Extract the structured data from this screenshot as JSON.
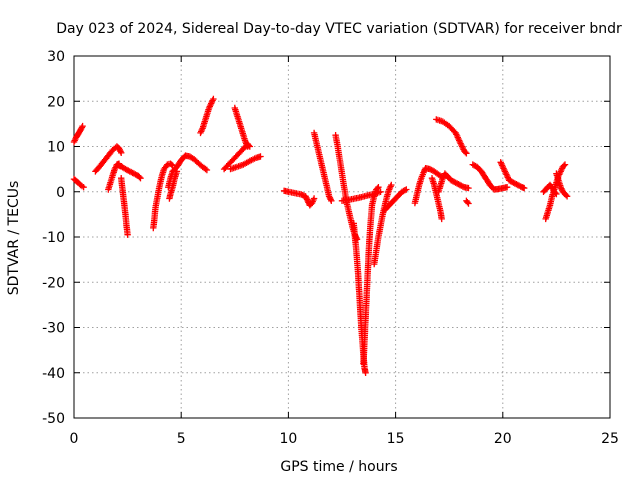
{
  "chart_data": {
    "type": "scatter",
    "title": "Day 023 of 2024, Sidereal Day-to-day VTEC variation (SDTVAR) for receiver bndr",
    "xlabel": "GPS time / hours",
    "ylabel": "SDTVAR / TECUs",
    "xlim": [
      0,
      25
    ],
    "ylim": [
      -50,
      30
    ],
    "xticks": [
      0,
      5,
      10,
      15,
      20,
      25
    ],
    "yticks": [
      -50,
      -40,
      -30,
      -20,
      -10,
      0,
      10,
      20,
      30
    ],
    "grid": true,
    "marker": "+",
    "marker_color": "#ff0000",
    "series": [
      {
        "name": "a1",
        "points": [
          [
            0.0,
            11.0
          ],
          [
            0.1,
            12.0
          ],
          [
            0.2,
            12.8
          ],
          [
            0.3,
            13.6
          ],
          [
            0.4,
            14.5
          ]
        ]
      },
      {
        "name": "a2",
        "points": [
          [
            0.0,
            2.8
          ],
          [
            0.1,
            2.4
          ],
          [
            0.2,
            2.0
          ],
          [
            0.3,
            1.5
          ],
          [
            0.45,
            1.0
          ]
        ]
      },
      {
        "name": "b1",
        "points": [
          [
            1.0,
            4.5
          ],
          [
            1.2,
            5.6
          ],
          [
            1.4,
            6.8
          ],
          [
            1.6,
            8.0
          ],
          [
            1.8,
            9.2
          ],
          [
            2.0,
            10.0
          ],
          [
            2.1,
            9.6
          ],
          [
            2.2,
            8.6
          ]
        ]
      },
      {
        "name": "b2",
        "points": [
          [
            1.6,
            0.5
          ],
          [
            1.7,
            2.0
          ],
          [
            1.8,
            3.6
          ],
          [
            1.9,
            5.0
          ],
          [
            2.0,
            6.0
          ],
          [
            2.1,
            6.2
          ]
        ]
      },
      {
        "name": "b3",
        "points": [
          [
            2.1,
            5.8
          ],
          [
            2.2,
            5.6
          ],
          [
            2.4,
            5.0
          ],
          [
            2.6,
            4.5
          ],
          [
            2.8,
            4.0
          ],
          [
            3.0,
            3.5
          ],
          [
            3.1,
            3.0
          ]
        ]
      },
      {
        "name": "b4",
        "points": [
          [
            2.2,
            3.0
          ],
          [
            2.25,
            1.0
          ],
          [
            2.3,
            -1.0
          ],
          [
            2.35,
            -3.0
          ],
          [
            2.4,
            -5.0
          ],
          [
            2.45,
            -7.5
          ],
          [
            2.5,
            -9.5
          ]
        ]
      },
      {
        "name": "c1",
        "points": [
          [
            3.7,
            -8.0
          ],
          [
            3.75,
            -6.0
          ],
          [
            3.8,
            -3.5
          ],
          [
            3.9,
            -1.0
          ],
          [
            4.0,
            1.5
          ],
          [
            4.1,
            3.5
          ],
          [
            4.2,
            5.0
          ],
          [
            4.35,
            6.0
          ],
          [
            4.5,
            6.2
          ],
          [
            4.6,
            5.8
          ]
        ]
      },
      {
        "name": "c2",
        "points": [
          [
            4.4,
            1.0
          ],
          [
            4.5,
            3.0
          ],
          [
            4.6,
            4.5
          ],
          [
            4.8,
            5.5
          ],
          [
            5.0,
            7.0
          ],
          [
            5.2,
            8.0
          ],
          [
            5.4,
            7.8
          ],
          [
            5.6,
            7.2
          ],
          [
            5.8,
            6.3
          ],
          [
            6.0,
            5.5
          ],
          [
            6.2,
            4.8
          ]
        ]
      },
      {
        "name": "c3",
        "points": [
          [
            4.45,
            -1.5
          ],
          [
            4.5,
            -0.5
          ],
          [
            4.6,
            1.0
          ],
          [
            4.7,
            3.0
          ],
          [
            4.8,
            4.5
          ]
        ]
      },
      {
        "name": "d1",
        "points": [
          [
            5.9,
            13.0
          ],
          [
            6.0,
            14.0
          ],
          [
            6.1,
            15.5
          ],
          [
            6.2,
            17.0
          ],
          [
            6.3,
            18.5
          ],
          [
            6.4,
            19.5
          ],
          [
            6.5,
            20.5
          ]
        ]
      },
      {
        "name": "d2",
        "points": [
          [
            7.5,
            18.5
          ],
          [
            7.6,
            17.0
          ],
          [
            7.7,
            15.5
          ],
          [
            7.8,
            14.0
          ],
          [
            7.9,
            12.5
          ],
          [
            8.0,
            11.0
          ],
          [
            8.1,
            10.0
          ]
        ]
      },
      {
        "name": "d3",
        "points": [
          [
            7.0,
            5.0
          ],
          [
            7.3,
            6.5
          ],
          [
            7.6,
            8.0
          ],
          [
            7.9,
            9.5
          ],
          [
            8.1,
            10.5
          ],
          [
            8.2,
            10.0
          ]
        ]
      },
      {
        "name": "d4",
        "points": [
          [
            7.3,
            5.0
          ],
          [
            7.6,
            5.5
          ],
          [
            7.9,
            6.0
          ],
          [
            8.2,
            6.8
          ],
          [
            8.5,
            7.5
          ],
          [
            8.7,
            7.8
          ]
        ]
      },
      {
        "name": "e1",
        "points": [
          [
            9.8,
            0.2
          ],
          [
            10.0,
            0.0
          ],
          [
            10.3,
            -0.3
          ],
          [
            10.6,
            -0.6
          ],
          [
            10.8,
            -1.0
          ],
          [
            10.9,
            -2.0
          ],
          [
            11.0,
            -3.0
          ],
          [
            11.1,
            -2.5
          ],
          [
            11.2,
            -1.5
          ]
        ]
      },
      {
        "name": "e2",
        "points": [
          [
            11.2,
            13.0
          ],
          [
            11.3,
            11.0
          ],
          [
            11.4,
            9.0
          ],
          [
            11.5,
            7.0
          ],
          [
            11.6,
            5.0
          ],
          [
            11.7,
            3.0
          ],
          [
            11.8,
            1.0
          ],
          [
            11.9,
            -1.0
          ],
          [
            12.0,
            -2.0
          ]
        ]
      },
      {
        "name": "e3",
        "points": [
          [
            12.2,
            12.5
          ],
          [
            12.3,
            10.0
          ],
          [
            12.4,
            7.0
          ],
          [
            12.5,
            4.0
          ],
          [
            12.6,
            1.0
          ],
          [
            12.7,
            -2.0
          ],
          [
            12.8,
            -4.0
          ],
          [
            12.9,
            -6.0
          ],
          [
            13.0,
            -8.0
          ],
          [
            13.1,
            -9.5
          ],
          [
            13.2,
            -10.5
          ]
        ]
      },
      {
        "name": "f1",
        "points": [
          [
            13.05,
            -7.0
          ],
          [
            13.1,
            -10.0
          ],
          [
            13.15,
            -12.0
          ],
          [
            13.2,
            -15.0
          ],
          [
            13.25,
            -18.0
          ],
          [
            13.3,
            -22.0
          ],
          [
            13.35,
            -26.0
          ],
          [
            13.4,
            -30.0
          ],
          [
            13.45,
            -33.0
          ],
          [
            13.5,
            -36.0
          ],
          [
            13.55,
            -39.0
          ],
          [
            13.6,
            -40.0
          ]
        ]
      },
      {
        "name": "f2",
        "points": [
          [
            13.5,
            -38.0
          ],
          [
            13.55,
            -33.0
          ],
          [
            13.6,
            -28.0
          ],
          [
            13.65,
            -23.0
          ],
          [
            13.7,
            -18.0
          ],
          [
            13.75,
            -13.0
          ],
          [
            13.8,
            -9.0
          ],
          [
            13.85,
            -6.0
          ],
          [
            13.9,
            -3.0
          ],
          [
            14.0,
            -1.0
          ],
          [
            14.1,
            0.5
          ],
          [
            14.2,
            1.0
          ]
        ]
      },
      {
        "name": "f3",
        "points": [
          [
            12.5,
            -2.0
          ],
          [
            12.8,
            -1.8
          ],
          [
            13.1,
            -1.5
          ],
          [
            13.4,
            -1.2
          ],
          [
            13.7,
            -0.8
          ],
          [
            14.0,
            -0.5
          ],
          [
            14.3,
            0.0
          ]
        ]
      },
      {
        "name": "f4",
        "points": [
          [
            14.0,
            -16.0
          ],
          [
            14.1,
            -13.0
          ],
          [
            14.2,
            -10.0
          ],
          [
            14.3,
            -7.5
          ],
          [
            14.4,
            -5.0
          ],
          [
            14.5,
            -3.0
          ],
          [
            14.6,
            -1.0
          ],
          [
            14.7,
            0.5
          ],
          [
            14.8,
            1.5
          ]
        ]
      },
      {
        "name": "f5",
        "points": [
          [
            14.5,
            -4.0
          ],
          [
            14.7,
            -3.0
          ],
          [
            14.9,
            -2.0
          ],
          [
            15.1,
            -1.0
          ],
          [
            15.3,
            0.0
          ],
          [
            15.5,
            0.5
          ]
        ]
      },
      {
        "name": "g1",
        "points": [
          [
            15.9,
            -2.5
          ],
          [
            16.0,
            -0.5
          ],
          [
            16.1,
            1.5
          ],
          [
            16.2,
            3.0
          ],
          [
            16.3,
            4.2
          ],
          [
            16.4,
            5.2
          ],
          [
            16.6,
            5.0
          ],
          [
            16.8,
            4.5
          ],
          [
            17.0,
            3.8
          ],
          [
            17.2,
            3.2
          ]
        ]
      },
      {
        "name": "g2",
        "points": [
          [
            16.9,
            16.0
          ],
          [
            17.2,
            15.5
          ],
          [
            17.5,
            14.5
          ],
          [
            17.8,
            13.0
          ],
          [
            18.0,
            11.0
          ],
          [
            18.2,
            9.0
          ],
          [
            18.3,
            8.5
          ]
        ]
      },
      {
        "name": "g3",
        "points": [
          [
            16.7,
            3.0
          ],
          [
            16.8,
            1.5
          ],
          [
            16.9,
            -0.5
          ],
          [
            17.0,
            -2.5
          ],
          [
            17.1,
            -4.5
          ],
          [
            17.15,
            -6.0
          ]
        ]
      },
      {
        "name": "g4",
        "points": [
          [
            17.0,
            0.0
          ],
          [
            17.1,
            1.5
          ],
          [
            17.2,
            3.0
          ],
          [
            17.3,
            4.0
          ],
          [
            17.4,
            3.5
          ],
          [
            17.6,
            2.5
          ],
          [
            17.8,
            2.0
          ],
          [
            18.0,
            1.5
          ],
          [
            18.2,
            1.0
          ],
          [
            18.4,
            0.8
          ]
        ]
      },
      {
        "name": "g5",
        "points": [
          [
            18.3,
            -2.0
          ],
          [
            18.4,
            -2.6
          ]
        ]
      },
      {
        "name": "h1",
        "points": [
          [
            18.6,
            6.0
          ],
          [
            18.8,
            5.5
          ],
          [
            19.0,
            4.5
          ],
          [
            19.2,
            3.0
          ],
          [
            19.4,
            1.5
          ],
          [
            19.6,
            0.5
          ],
          [
            19.8,
            0.6
          ],
          [
            20.0,
            0.8
          ],
          [
            20.2,
            1.0
          ]
        ]
      },
      {
        "name": "h2",
        "points": [
          [
            19.9,
            6.5
          ],
          [
            20.0,
            5.5
          ],
          [
            20.1,
            4.5
          ],
          [
            20.2,
            3.5
          ],
          [
            20.3,
            2.5
          ],
          [
            20.5,
            2.0
          ],
          [
            20.7,
            1.5
          ],
          [
            20.9,
            1.0
          ],
          [
            21.0,
            0.8
          ]
        ]
      },
      {
        "name": "i1",
        "points": [
          [
            21.9,
            0.0
          ],
          [
            22.1,
            1.0
          ],
          [
            22.2,
            1.5
          ],
          [
            22.3,
            1.0
          ],
          [
            22.4,
            0.0
          ],
          [
            22.5,
            -0.5
          ]
        ]
      },
      {
        "name": "i2",
        "points": [
          [
            22.0,
            -6.0
          ],
          [
            22.1,
            -4.5
          ],
          [
            22.2,
            -3.0
          ],
          [
            22.3,
            -1.0
          ],
          [
            22.4,
            0.5
          ],
          [
            22.5,
            2.0
          ],
          [
            22.6,
            3.5
          ],
          [
            22.7,
            4.5
          ],
          [
            22.8,
            5.5
          ],
          [
            22.9,
            6.0
          ]
        ]
      },
      {
        "name": "i3",
        "points": [
          [
            22.5,
            4.0
          ],
          [
            22.6,
            2.5
          ],
          [
            22.7,
            1.0
          ],
          [
            22.8,
            0.0
          ],
          [
            22.9,
            -0.5
          ],
          [
            23.0,
            -1.0
          ]
        ]
      }
    ]
  }
}
